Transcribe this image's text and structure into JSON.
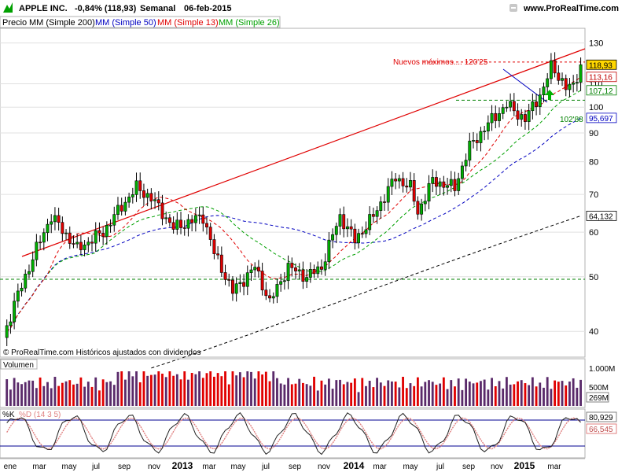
{
  "header": {
    "symbol": "APPLE INC.",
    "change": "-0,84% (118,93)",
    "period": "Semanal",
    "date": "06-feb-2015",
    "site": "www.ProRealTime.com",
    "minimize_icon": "minimize-icon",
    "close_icon": "close-icon"
  },
  "legend": {
    "price": "Precio",
    "items": [
      {
        "label": "MM (Simple 200)",
        "color": "#000000"
      },
      {
        "label": "MM (Simple 50)",
        "color": "#0000c0"
      },
      {
        "label": "MM (Simple 13)",
        "color": "#e00000"
      },
      {
        "label": "MM (Simple 26)",
        "color": "#00a000"
      }
    ]
  },
  "copyright": "© ProRealTime.com Históricos ajustados con dividendos",
  "annotations": {
    "new_high": "Nuevos máximos.... 120'25",
    "support": "102'88",
    "arrow_icon": "up-arrow-icon"
  },
  "price_axis": {
    "ticks": [
      "130",
      "110",
      "100",
      "90",
      "80",
      "70",
      "60",
      "50",
      "40"
    ],
    "tick_values": [
      130,
      110,
      100,
      90,
      80,
      70,
      60,
      50,
      40
    ],
    "markers": [
      {
        "label": "118,93",
        "value": 118.93,
        "color": "#000000",
        "bg": "#ffd700"
      },
      {
        "label": "113,16",
        "value": 113.16,
        "color": "#c00000",
        "bg": "#ffffff"
      },
      {
        "label": "107,12",
        "value": 107.12,
        "color": "#008000",
        "bg": "#ffffff"
      },
      {
        "label": "95,697",
        "value": 95.697,
        "color": "#0000c0",
        "bg": "#ffffff"
      },
      {
        "label": "64,132",
        "value": 64.132,
        "color": "#000000",
        "bg": "#ffffff"
      }
    ]
  },
  "volume": {
    "title": "Volumen",
    "ticks": [
      "1.000M",
      "500M"
    ],
    "last": "269M"
  },
  "stochastic": {
    "k_label": "%K",
    "d_label": "%D (14 3 5)",
    "k_value": "80,929",
    "d_value": "66,545"
  },
  "x_axis": {
    "labels": [
      "ene",
      "mar",
      "may",
      "jul",
      "sep",
      "nov",
      "2013",
      "mar",
      "may",
      "jul",
      "sep",
      "nov",
      "2014",
      "mar",
      "may",
      "jul",
      "sep",
      "nov",
      "2015",
      "mar"
    ],
    "bold": [
      "2013",
      "2014",
      "2015"
    ]
  },
  "colors": {
    "up": "#00b000",
    "down": "#e00000",
    "sma200": "#000000",
    "sma50": "#0000c0",
    "sma13": "#e00000",
    "sma26": "#00a000",
    "trendline": "#e00000",
    "level": "#008000",
    "grid": "#e0e0e0"
  },
  "chart_data": {
    "type": "candlestick",
    "title": "APPLE INC.",
    "x_range": [
      "2012-01-06",
      "2015-03-13"
    ],
    "y_scale": "log",
    "ylim": [
      36,
      138
    ],
    "anchors": [
      {
        "week": 0,
        "close": 39
      },
      {
        "week": 7,
        "close": 52
      },
      {
        "week": 13,
        "close": 64
      },
      {
        "week": 20,
        "close": 56
      },
      {
        "week": 27,
        "close": 60
      },
      {
        "week": 36,
        "close": 72
      },
      {
        "week": 40,
        "close": 69
      },
      {
        "week": 46,
        "close": 61
      },
      {
        "week": 54,
        "close": 64
      },
      {
        "week": 57,
        "close": 55
      },
      {
        "week": 62,
        "close": 47
      },
      {
        "week": 68,
        "close": 52
      },
      {
        "week": 72,
        "close": 45
      },
      {
        "week": 77,
        "close": 52
      },
      {
        "week": 82,
        "close": 50
      },
      {
        "week": 86,
        "close": 52
      },
      {
        "week": 91,
        "close": 64
      },
      {
        "week": 95,
        "close": 58
      },
      {
        "week": 100,
        "close": 64
      },
      {
        "week": 106,
        "close": 75
      },
      {
        "week": 110,
        "close": 72
      },
      {
        "week": 112,
        "close": 65
      },
      {
        "week": 116,
        "close": 74
      },
      {
        "week": 122,
        "close": 72
      },
      {
        "week": 126,
        "close": 85
      },
      {
        "week": 132,
        "close": 95
      },
      {
        "week": 136,
        "close": 101
      },
      {
        "week": 141,
        "close": 95
      },
      {
        "week": 146,
        "close": 108
      },
      {
        "week": 148,
        "close": 118
      },
      {
        "week": 150,
        "close": 114
      },
      {
        "week": 152,
        "close": 108
      },
      {
        "week": 154,
        "close": 109
      },
      {
        "week": 156,
        "close": 118.93
      }
    ],
    "levels": {
      "new_high": 120.25,
      "support": 102.88,
      "sma200_last": 64.132,
      "sma50_last": 95.697,
      "sma26_last": 107.12,
      "sma13_last": 113.16,
      "last_close": 118.93
    },
    "stochastic_last": {
      "k": 80.929,
      "d": 66.545
    }
  }
}
